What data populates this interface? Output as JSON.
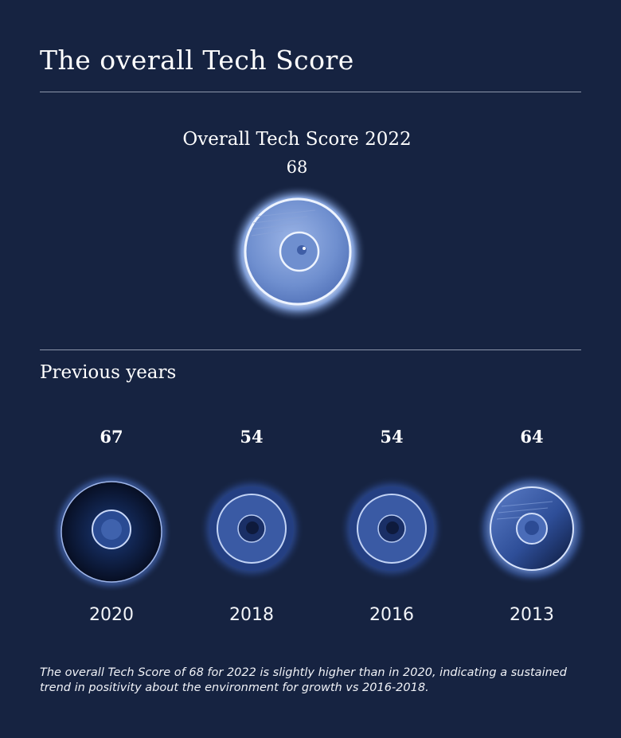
{
  "page": {
    "title": "The overall Tech Score"
  },
  "current": {
    "label": "Overall Tech Score 2022",
    "score": "68",
    "level": 68,
    "disc_style": "light-blue"
  },
  "previous": {
    "heading": "Previous years",
    "years": [
      {
        "year": "2020",
        "score": "67",
        "level": 67,
        "disc_style": "dark"
      },
      {
        "year": "2018",
        "score": "54",
        "level": 54,
        "disc_style": "mid-blue"
      },
      {
        "year": "2016",
        "score": "54",
        "level": 54,
        "disc_style": "mid-blue"
      },
      {
        "year": "2013",
        "score": "64",
        "level": 64,
        "disc_style": "blue-shaded"
      }
    ]
  },
  "note": "The overall Tech Score of 68 for 2022 is slightly higher than in 2020, indicating a sustained trend in positivity about the environment for growth vs 2016-2018.",
  "colors": {
    "background": "#162341",
    "rule": "#8d97ab",
    "text": "#ffffff",
    "disc_glow": "#cfe0ff"
  }
}
